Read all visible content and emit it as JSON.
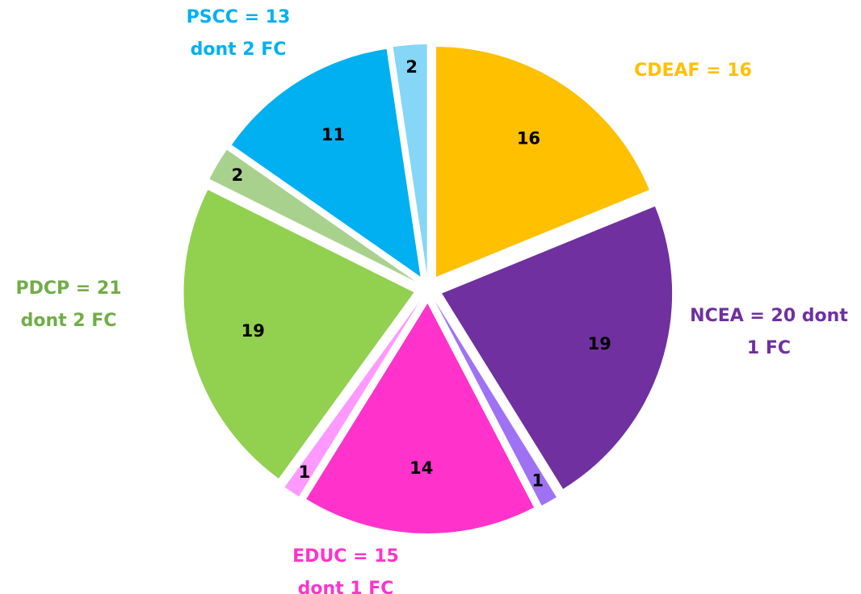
{
  "chart_data": {
    "type": "pie",
    "values": [
      16,
      19,
      1,
      14,
      1,
      19,
      2,
      11,
      2
    ],
    "colors": [
      "#ffc000",
      "#7030a0",
      "#9f72f5",
      "#ff33cc",
      "#ff99ff",
      "#92d050",
      "#a9d18e",
      "#00b0f0",
      "#85d6f7"
    ],
    "annotations": [
      {
        "lines": [
          "CDEAF = 16"
        ],
        "color": "#ffc000"
      },
      {
        "lines": [
          "NCEA = 20  dont",
          "1 FC"
        ],
        "color": "#7030a0"
      },
      {
        "lines": [
          "EDUC = 15",
          "dont 1 FC"
        ],
        "color": "#ff33cc"
      },
      {
        "lines": [
          "PDCP = 21",
          "dont 2 FC"
        ],
        "color": "#70ad47"
      },
      {
        "lines": [
          "PSCC = 13",
          "dont 2 FC"
        ],
        "color": "#00b0f0"
      }
    ]
  }
}
